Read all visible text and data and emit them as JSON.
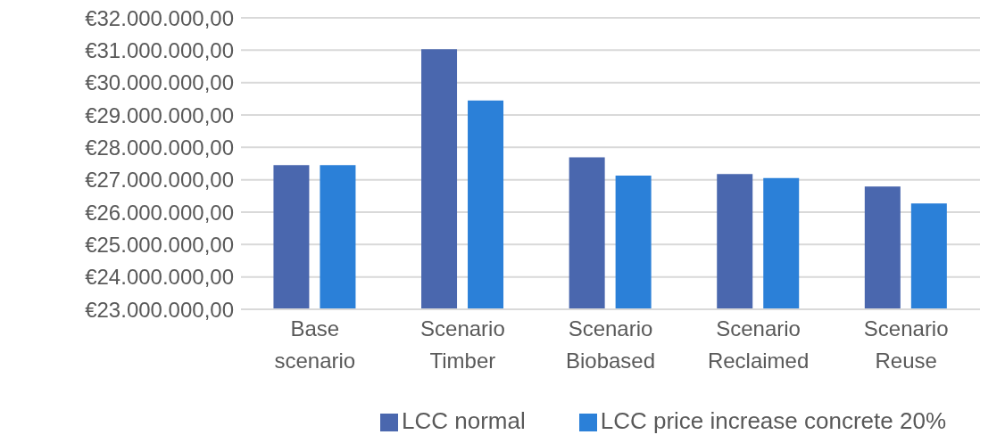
{
  "chart_data": {
    "type": "bar",
    "categories": [
      "Base scenario",
      "Scenario Timber",
      "Scenario Biobased",
      "Scenario Reclaimed",
      "Scenario Reuse"
    ],
    "series": [
      {
        "name": "LCC normal",
        "color": "#4a67ae",
        "values": [
          27450000,
          31030000,
          27690000,
          27180000,
          26790000
        ]
      },
      {
        "name": "LCC price increase concrete 20%",
        "color": "#2b80d8",
        "values": [
          27450000,
          29450000,
          27130000,
          27050000,
          26270000
        ]
      }
    ],
    "ylim": [
      23000000,
      32000000
    ],
    "yticks": [
      {
        "value": 23000000,
        "label": "€23.000.000,00"
      },
      {
        "value": 24000000,
        "label": "€24.000.000,00"
      },
      {
        "value": 25000000,
        "label": "€25.000.000,00"
      },
      {
        "value": 26000000,
        "label": "€26.000.000,00"
      },
      {
        "value": 27000000,
        "label": "€27.000.000,00"
      },
      {
        "value": 28000000,
        "label": "€28.000.000,00"
      },
      {
        "value": 29000000,
        "label": "€29.000.000,00"
      },
      {
        "value": 30000000,
        "label": "€30.000.000,00"
      },
      {
        "value": 31000000,
        "label": "€31.000.000,00"
      },
      {
        "value": 32000000,
        "label": "€32.000.000,00"
      }
    ],
    "grid": "y",
    "legend": "bottom"
  }
}
